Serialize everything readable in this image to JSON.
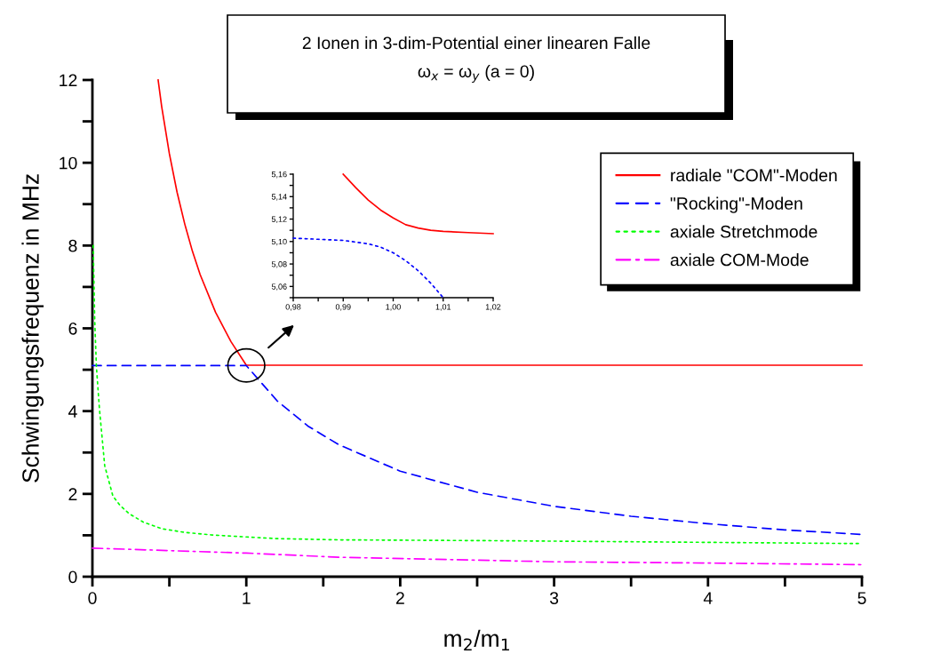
{
  "chart_data": [
    {
      "type": "line",
      "title": "2 Ionen in 3-dim-Potential einer linearen Falle",
      "subtitle": "ω$_{x}$ = ω$_{y}$ (a = 0)",
      "xlabel": "m$_{2}$/m$_{1}$",
      "ylabel": "Schwingungsfrequenz in MHz",
      "xlim": [
        0,
        5
      ],
      "ylim": [
        0,
        12
      ],
      "xticks": [
        0,
        {
          "value": 0.5,
          "label": null
        },
        1,
        {
          "value": 1.5,
          "label": null
        },
        2,
        {
          "value": 2.5,
          "label": null
        },
        3,
        {
          "value": 3.5,
          "label": null
        },
        4,
        {
          "value": 4.5,
          "label": null
        },
        5
      ],
      "yticks": [
        0,
        {
          "value": 1,
          "label": null
        },
        2,
        {
          "value": 3,
          "label": null
        },
        4,
        {
          "value": 5,
          "label": null
        },
        6,
        {
          "value": 7,
          "label": null
        },
        8,
        {
          "value": 9,
          "label": null
        },
        10,
        {
          "value": 11,
          "label": null
        },
        12
      ],
      "grid": false,
      "legend": "right",
      "series": [
        {
          "name": "radiale \"COM\"-Moden",
          "color": "#ff0000",
          "line_style": "solid",
          "x": [
            0.427,
            0.45,
            0.5,
            0.55,
            0.6,
            0.65,
            0.7,
            0.8,
            0.9,
            1.0,
            5.0
          ],
          "values": [
            12,
            11.36,
            10.22,
            9.29,
            8.52,
            7.86,
            7.3,
            6.39,
            5.68,
            5.11,
            5.11
          ]
        },
        {
          "name": "\"Rocking\"-Moden",
          "color": "#0000ff",
          "line_style": "dashed",
          "x": [
            0,
            1.0,
            1.2,
            1.4,
            1.6,
            2,
            2.5,
            3,
            3.5,
            4,
            4.5,
            5
          ],
          "values": [
            5.1,
            5.1,
            4.25,
            3.64,
            3.19,
            2.55,
            2.04,
            1.7,
            1.46,
            1.28,
            1.13,
            1.02
          ]
        },
        {
          "name": "axiale Stretchmode",
          "color": "#00ff00",
          "line_style": "dotted",
          "x": [
            0.005,
            0.015,
            0.026,
            0.046,
            0.08,
            0.133,
            0.18,
            0.24,
            0.33,
            0.45,
            0.6,
            0.77,
            1.0,
            1.2,
            1.6,
            2.6,
            5.0
          ],
          "values": [
            8.0,
            6.2,
            5.07,
            4.04,
            2.68,
            1.95,
            1.72,
            1.52,
            1.32,
            1.16,
            1.07,
            1.01,
            0.96,
            0.92,
            0.89,
            0.87,
            0.8
          ]
        },
        {
          "name": "axiale COM-Mode",
          "color": "#ff00ff",
          "line_style": "dashdot",
          "x": [
            0,
            1,
            1.6,
            3,
            4,
            5
          ],
          "values": [
            0.69,
            0.57,
            0.47,
            0.36,
            0.33,
            0.29
          ]
        }
      ]
    },
    {
      "type": "line",
      "xlim": [
        0.98,
        1.02
      ],
      "ylim": [
        5.05,
        5.16
      ],
      "xticks": [
        {
          "value": 0.98,
          "label": "0,98"
        },
        {
          "value": 0.985,
          "label": null
        },
        {
          "value": 0.99,
          "label": "0,99"
        },
        {
          "value": 0.995,
          "label": null
        },
        {
          "value": 1.0,
          "label": "1,00"
        },
        {
          "value": 1.005,
          "label": null
        },
        {
          "value": 1.01,
          "label": "1,01"
        },
        {
          "value": 1.015,
          "label": null
        },
        {
          "value": 1.02,
          "label": "1,02"
        }
      ],
      "yticks": [
        {
          "value": 5.05,
          "label": null
        },
        {
          "value": 5.06,
          "label": "5,06"
        },
        {
          "value": 5.07,
          "label": null
        },
        {
          "value": 5.08,
          "label": "5,08"
        },
        {
          "value": 5.09,
          "label": null
        },
        {
          "value": 5.1,
          "label": "5,10"
        },
        {
          "value": 5.11,
          "label": null
        },
        {
          "value": 5.12,
          "label": "5,12"
        },
        {
          "value": 5.13,
          "label": null
        },
        {
          "value": 5.14,
          "label": "5,14"
        },
        {
          "value": 5.15,
          "label": null
        },
        {
          "value": 5.16,
          "label": "5,16"
        }
      ],
      "grid": false,
      "series": [
        {
          "color": "#ff0000",
          "line_style": "solid",
          "x": [
            0.99,
            0.9925,
            0.995,
            0.9975,
            1.0,
            1.0025,
            1.005,
            1.0075,
            1.01,
            1.015,
            1.02
          ],
          "values": [
            5.16,
            5.148,
            5.137,
            5.128,
            5.121,
            5.115,
            5.112,
            5.11,
            5.109,
            5.108,
            5.107
          ]
        },
        {
          "color": "#0000ff",
          "line_style": "dotted",
          "x": [
            0.98,
            0.985,
            0.99,
            0.995,
            0.9975,
            1.0,
            1.0025,
            1.005,
            1.0075,
            1.01
          ],
          "values": [
            5.103,
            5.102,
            5.101,
            5.098,
            5.095,
            5.09,
            5.083,
            5.074,
            5.063,
            5.05
          ]
        }
      ]
    }
  ]
}
